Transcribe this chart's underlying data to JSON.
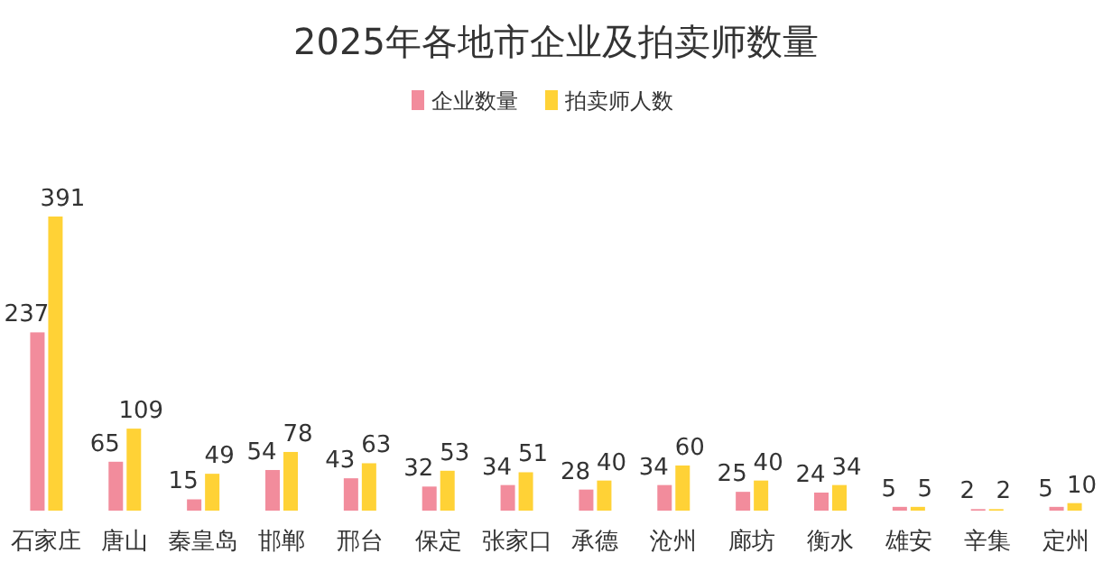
{
  "chart_data": {
    "type": "bar",
    "title": "2025年各地市企业及拍卖师数量",
    "categories": [
      "石家庄",
      "唐山",
      "秦皇岛",
      "邯郸",
      "邢台",
      "保定",
      "张家口",
      "承德",
      "沧州",
      "廊坊",
      "衡水",
      "雄安",
      "辛集",
      "定州"
    ],
    "series": [
      {
        "name": "企业数量",
        "color": "#f28c9c",
        "values": [
          237,
          65,
          15,
          54,
          43,
          32,
          34,
          28,
          34,
          25,
          24,
          5,
          2,
          5
        ]
      },
      {
        "name": "拍卖师人数",
        "color": "#ffd236",
        "values": [
          391,
          109,
          49,
          78,
          63,
          53,
          51,
          40,
          60,
          40,
          34,
          5,
          2,
          10
        ]
      }
    ],
    "data_labels": true,
    "legend": "top"
  }
}
